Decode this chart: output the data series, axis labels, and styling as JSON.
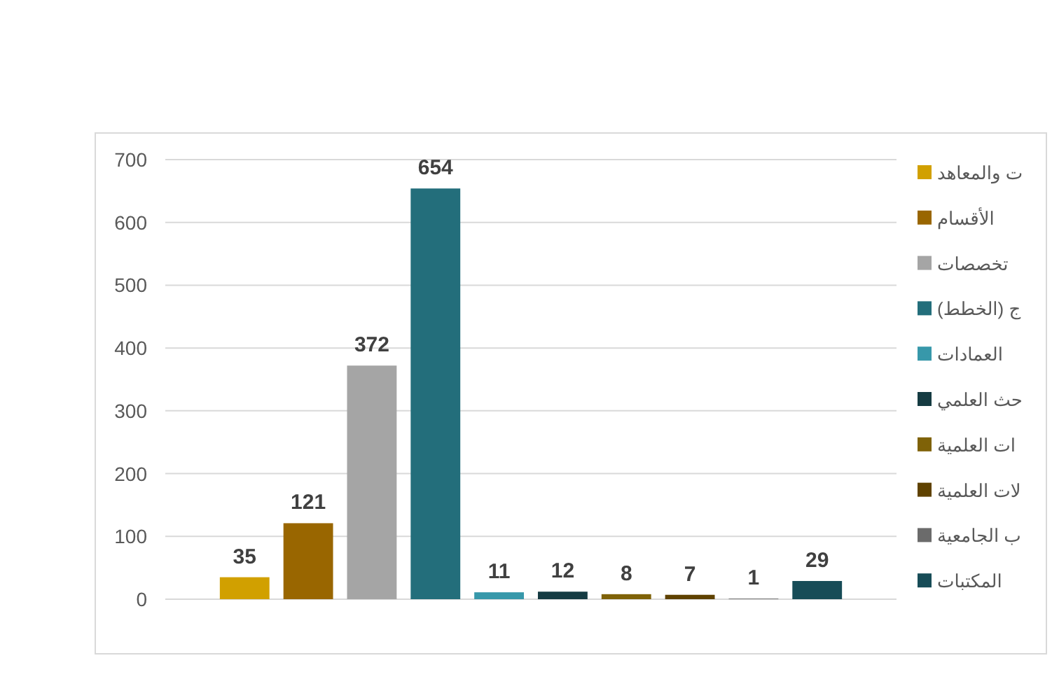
{
  "chart_data": {
    "type": "bar",
    "categories": [
      null
    ],
    "series": [
      {
        "name": "ت والمعاهد",
        "color": "#d1a000",
        "values": [
          35
        ]
      },
      {
        "name": "الأقسام",
        "color": "#996600",
        "values": [
          121
        ]
      },
      {
        "name": "تخصصات",
        "color": "#a5a5a5",
        "values": [
          372
        ]
      },
      {
        "name": "ج (الخطط)",
        "color": "#236e7b",
        "values": [
          654
        ]
      },
      {
        "name": "العمادات",
        "color": "#3798aa",
        "values": [
          11
        ]
      },
      {
        "name": "حث العلمي",
        "color": "#153b42",
        "values": [
          12
        ]
      },
      {
        "name": "ات العلمية",
        "color": "#7f6208",
        "values": [
          8
        ]
      },
      {
        "name": "لات العلمية",
        "color": "#5f4200",
        "values": [
          7
        ]
      },
      {
        "name": "ب الجامعية",
        "color": "#6b6b6b",
        "values": [
          1
        ]
      },
      {
        "name": "المكتبات",
        "color": "#174c57",
        "values": [
          29
        ]
      }
    ],
    "ylim": [
      0,
      700
    ],
    "yticks": [
      0,
      100,
      200,
      300,
      400,
      500,
      600,
      700
    ],
    "grid": "y",
    "legend": "right",
    "data_labels": true
  }
}
